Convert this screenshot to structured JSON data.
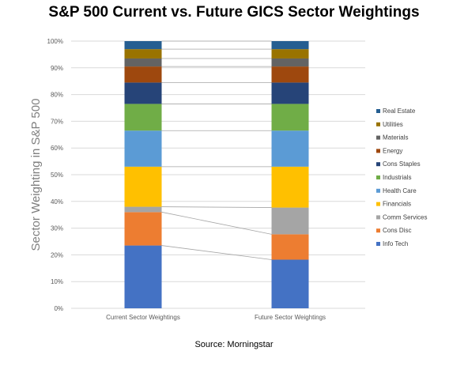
{
  "title": "S&P 500 Current vs. Future GICS Sector Weightings",
  "source": "Source: Morningstar",
  "chart_data": {
    "type": "bar",
    "stacked": true,
    "ylabel": "Sector Weighting in S&P 500",
    "xlabel": "",
    "ylim": [
      0,
      100
    ],
    "yticks": [
      0,
      10,
      20,
      30,
      40,
      50,
      60,
      70,
      80,
      90,
      100
    ],
    "ytick_labels": [
      "0%",
      "10%",
      "20%",
      "30%",
      "40%",
      "50%",
      "60%",
      "70%",
      "80%",
      "90%",
      "100%"
    ],
    "categories": [
      "Current Sector Weightings",
      "Future Sector Weightings"
    ],
    "series": [
      {
        "name": "Info Tech",
        "color": "#4472c4",
        "values": [
          23.5,
          18.2
        ]
      },
      {
        "name": "Cons Disc",
        "color": "#ed7d31",
        "values": [
          12.5,
          9.5
        ]
      },
      {
        "name": "Comm Services",
        "color": "#a5a5a5",
        "values": [
          2.0,
          10.0
        ]
      },
      {
        "name": "Financials",
        "color": "#ffc000",
        "values": [
          15.0,
          15.3
        ]
      },
      {
        "name": "Health Care",
        "color": "#5b9bd5",
        "values": [
          13.5,
          13.5
        ]
      },
      {
        "name": "Industrials",
        "color": "#70ad47",
        "values": [
          10.0,
          10.0
        ]
      },
      {
        "name": "Cons Staples",
        "color": "#264478",
        "values": [
          8.0,
          8.0
        ]
      },
      {
        "name": "Energy",
        "color": "#9e480e",
        "values": [
          6.0,
          6.0
        ]
      },
      {
        "name": "Materials",
        "color": "#636363",
        "values": [
          3.0,
          3.0
        ]
      },
      {
        "name": "Utilities",
        "color": "#997300",
        "values": [
          3.5,
          3.5
        ]
      },
      {
        "name": "Real Estate",
        "color": "#255e91",
        "values": [
          3.0,
          3.0
        ]
      }
    ],
    "grid": true,
    "legend_position": "right",
    "series_lines": true
  }
}
